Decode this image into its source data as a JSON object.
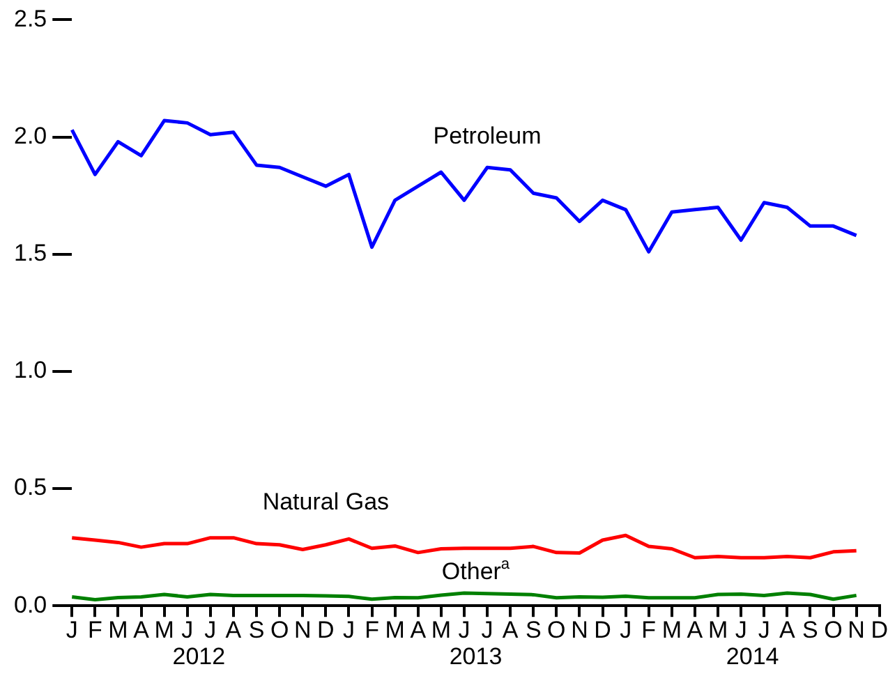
{
  "chart_data": {
    "type": "line",
    "categories": [
      "J",
      "F",
      "M",
      "A",
      "M",
      "J",
      "J",
      "A",
      "S",
      "O",
      "N",
      "D",
      "J",
      "F",
      "M",
      "A",
      "M",
      "J",
      "J",
      "A",
      "S",
      "O",
      "N",
      "D",
      "J",
      "F",
      "M",
      "A",
      "M",
      "J",
      "J",
      "A",
      "S",
      "O",
      "N",
      "D"
    ],
    "series": [
      {
        "name": "Petroleum",
        "color": "#0000ff",
        "values": [
          2.03,
          1.84,
          1.98,
          1.92,
          2.07,
          2.06,
          2.01,
          2.02,
          1.88,
          1.87,
          1.83,
          1.79,
          1.84,
          1.53,
          1.73,
          1.79,
          1.85,
          1.73,
          1.87,
          1.86,
          1.76,
          1.74,
          1.64,
          1.73,
          1.69,
          1.51,
          1.68,
          1.69,
          1.7,
          1.56,
          1.72,
          1.7,
          1.62,
          1.62,
          1.58,
          null
        ]
      },
      {
        "name": "Natural Gas",
        "color": "#ff0000",
        "values": [
          0.29,
          0.28,
          0.27,
          0.25,
          0.265,
          0.265,
          0.29,
          0.29,
          0.265,
          0.26,
          0.24,
          0.26,
          0.285,
          0.245,
          0.255,
          0.227,
          0.243,
          0.245,
          0.245,
          0.245,
          0.253,
          0.227,
          0.225,
          0.28,
          0.3,
          0.253,
          0.243,
          0.205,
          0.21,
          0.205,
          0.205,
          0.21,
          0.205,
          0.23,
          0.235,
          null
        ]
      },
      {
        "name": "Other$^{a}$",
        "color": "#008000",
        "values": [
          0.038,
          0.026,
          0.035,
          0.038,
          0.048,
          0.038,
          0.048,
          0.044,
          0.044,
          0.044,
          0.044,
          0.042,
          0.04,
          0.028,
          0.035,
          0.034,
          0.045,
          0.054,
          0.052,
          0.05,
          0.047,
          0.034,
          0.038,
          0.036,
          0.041,
          0.034,
          0.034,
          0.034,
          0.048,
          0.05,
          0.044,
          0.054,
          0.048,
          0.028,
          0.044,
          null
        ]
      }
    ],
    "ylim": [
      0,
      2.5
    ],
    "yticks": [
      {
        "value": 0,
        "label": "0.0"
      },
      0.5,
      {
        "value": 1,
        "label": "1.0"
      },
      1.5,
      {
        "value": 2,
        "label": "2.0"
      },
      2.5
    ],
    "annotations": [
      "2012",
      "2013",
      "2014"
    ],
    "grid": false,
    "legend": false,
    "marker": "none",
    "line_style": "solid"
  }
}
